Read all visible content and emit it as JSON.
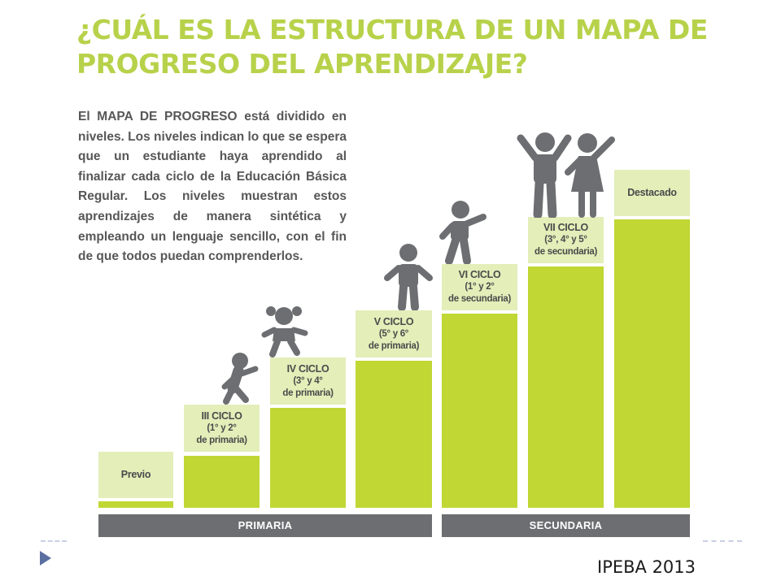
{
  "title": "¿CUÁL ES LA ESTRUCTURA DE UN MAPA DE PROGRESO DEL APRENDIZAJE?",
  "intro": "El MAPA DE PROGRESO está dividido en niveles. Los niveles indican lo que se espera que un estudiante haya aprendido al finalizar cada ciclo de la Educación Básica Regular. Los niveles muestran estos aprendizajes de manera sintética y empleando un lenguaje sencillo, con el fin de que todos puedan comprenderlos.",
  "levels": [
    {
      "line1": "Previo",
      "line2": "",
      "line3": ""
    },
    {
      "line1": "III CICLO",
      "line2": "(1° y 2°",
      "line3": "de primaria)"
    },
    {
      "line1": "IV CICLO",
      "line2": "(3° y 4°",
      "line3": "de primaria)"
    },
    {
      "line1": "V CICLO",
      "line2": "(5° y 6°",
      "line3": "de primaria)"
    },
    {
      "line1": "VI CICLO",
      "line2": "(1° y 2°",
      "line3": "de secundaria)"
    },
    {
      "line1": "VII CICLO",
      "line2": "(3°, 4° y 5°",
      "line3": "de secundaria)"
    },
    {
      "line1": "Destacado",
      "line2": "",
      "line3": ""
    }
  ],
  "bands": {
    "primaria": "PRIMARIA",
    "secundaria": "SECUNDARIA"
  },
  "figures": [
    "crawling-child-icon",
    "toddler-girl-icon",
    "child-icon",
    "pointing-child-icon",
    "teen-boy-icon",
    "teen-girl-icon"
  ],
  "source": "IPEBA 2013",
  "colors": {
    "green": "#c0d734",
    "label_bg": "#e3eeb9",
    "title": "#b7d24a",
    "band": "#6d6e71",
    "figure": "#6d6e71"
  }
}
